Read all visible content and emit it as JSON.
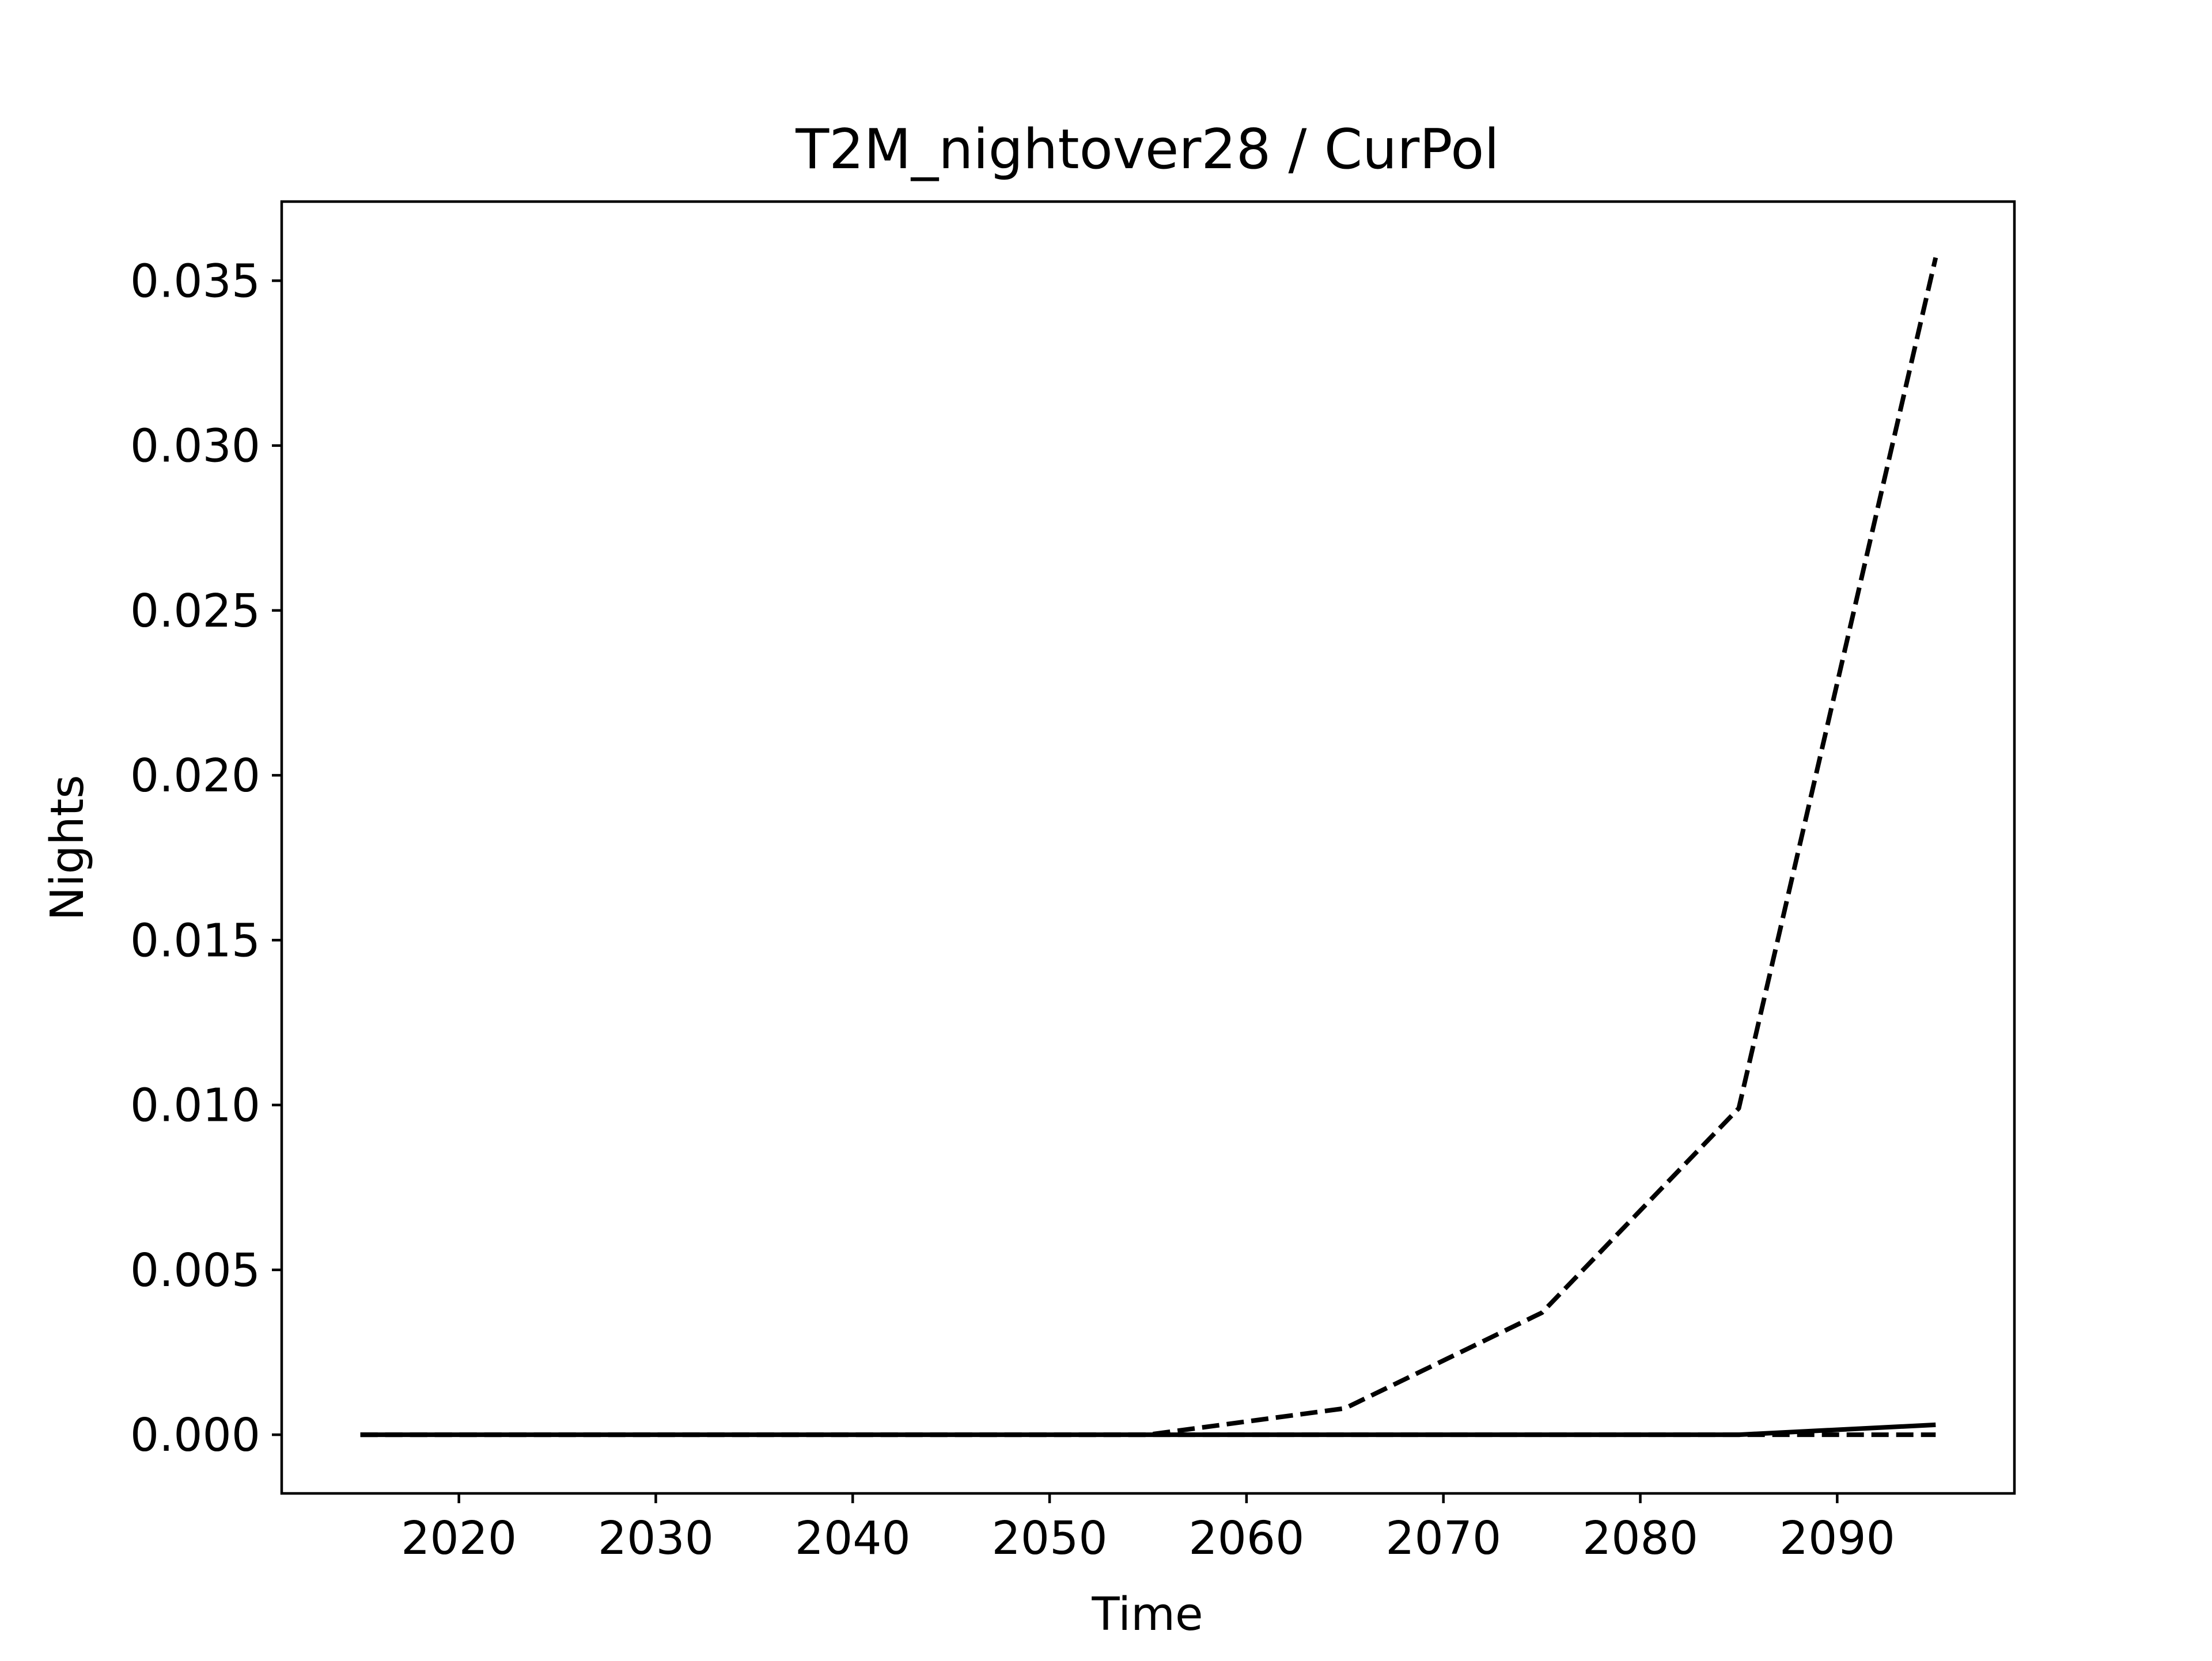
{
  "chart_data": {
    "type": "line",
    "title": "T2M_nightover28 / CurPol",
    "xlabel": "Time",
    "ylabel": "Nights",
    "xlim": [
      2011,
      2099
    ],
    "ylim": [
      -0.00178,
      0.0374
    ],
    "x_ticks": [
      2020,
      2030,
      2040,
      2050,
      2060,
      2070,
      2080,
      2090
    ],
    "y_ticks": [
      0.0,
      0.005,
      0.01,
      0.015,
      0.02,
      0.025,
      0.03,
      0.035
    ],
    "y_tick_labels": [
      "0.000",
      "0.005",
      "0.010",
      "0.015",
      "0.020",
      "0.025",
      "0.030",
      "0.035"
    ],
    "grid": false,
    "legend": "none",
    "series": [
      {
        "style": "dashed",
        "color": "#000000",
        "x": [
          2015,
          2025,
          2035,
          2045,
          2055,
          2065,
          2075,
          2085,
          2095
        ],
        "y": [
          0.0,
          0.0,
          0.0,
          0.0,
          0.0,
          0.0008,
          0.0037,
          0.0099,
          0.0357
        ]
      },
      {
        "style": "solid",
        "color": "#000000",
        "x": [
          2015,
          2025,
          2035,
          2045,
          2055,
          2065,
          2075,
          2085,
          2095
        ],
        "y": [
          0.0,
          0.0,
          0.0,
          0.0,
          0.0,
          0.0,
          0.0,
          0.0,
          0.0003
        ]
      },
      {
        "style": "dashed",
        "color": "#000000",
        "x": [
          2015,
          2025,
          2035,
          2045,
          2055,
          2065,
          2075,
          2085,
          2095
        ],
        "y": [
          0.0,
          0.0,
          0.0,
          0.0,
          0.0,
          0.0,
          0.0,
          0.0,
          0.0
        ]
      }
    ]
  }
}
